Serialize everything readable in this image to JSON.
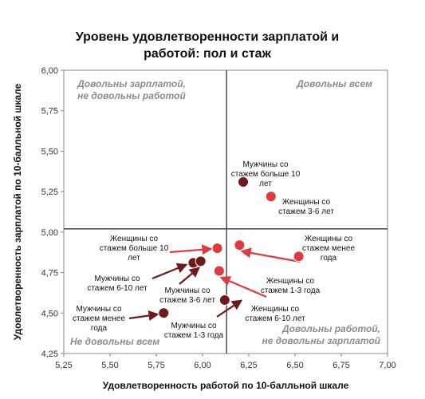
{
  "chart_data": {
    "type": "scatter",
    "title_lines": [
      "Уровень удовлетворенности зарплатой и",
      "работой: пол и стаж"
    ],
    "xlabel": "Удовлетворенность работой по 10-балльной шкале",
    "ylabel": "Удовлетворенность зарплатой по 10-балльной шкале",
    "xlim": [
      5.25,
      7.0
    ],
    "ylim": [
      4.25,
      6.0
    ],
    "x_ticks": [
      "5,25",
      "5,50",
      "5,75",
      "6,00",
      "6,25",
      "6,50",
      "6,75",
      "7,00"
    ],
    "y_ticks": [
      "4,25",
      "4,50",
      "4,75",
      "5,00",
      "5,25",
      "5,50",
      "5,75",
      "6,00"
    ],
    "x_tick_values": [
      5.25,
      5.5,
      5.75,
      6.0,
      6.25,
      6.5,
      6.75,
      7.0
    ],
    "y_tick_values": [
      4.25,
      4.5,
      4.75,
      5.0,
      5.25,
      5.5,
      5.75,
      6.0
    ],
    "divider_x": 6.13,
    "divider_y": 5.02,
    "grid": false,
    "colors": {
      "women": "#e03a3e",
      "men": "#6e1a1a",
      "divider": "#333333"
    },
    "quadrant_labels": {
      "top_left": [
        "Довольны зарплатой,",
        "не довольны работой"
      ],
      "top_right": [
        "Довольны всем"
      ],
      "bottom_left": [
        "Не довольны всем"
      ],
      "bottom_right": [
        "Довольны работой,",
        "не довольны зарплатой"
      ]
    },
    "series": [
      {
        "group": "women",
        "points": [
          {
            "label": "Женщины со стажем больше 10 лет",
            "x": 6.08,
            "y": 4.9
          },
          {
            "label": "Женщины со стажем 1-3 года",
            "x": 6.2,
            "y": 4.92
          },
          {
            "label": "Женщины со стажем менее года",
            "x": 6.52,
            "y": 4.85
          },
          {
            "label": "Женщины со стажем 3-6 лет",
            "x": 6.37,
            "y": 5.22
          },
          {
            "label": "Женщины со стажем 6-10 лет",
            "x": 6.09,
            "y": 4.76
          }
        ]
      },
      {
        "group": "men",
        "points": [
          {
            "label": "Мужчины со стажем больше 10 лет",
            "x": 6.22,
            "y": 5.31
          },
          {
            "label": "Мужчины со стажем 6-10 лет",
            "x": 5.95,
            "y": 4.81
          },
          {
            "label": "Мужчины со стажем 3-6 лет",
            "x": 5.99,
            "y": 4.82
          },
          {
            "label": "Мужчины со стажем менее года",
            "x": 5.79,
            "y": 4.5
          },
          {
            "label": "Мужчины со стажем 1-3 года",
            "x": 6.12,
            "y": 4.58
          }
        ]
      }
    ],
    "annotations": [
      {
        "lines": [
          "Мужчины со",
          "стажем больше 10",
          "лет"
        ]
      },
      {
        "lines": [
          "Женщины со",
          "стажем 3-6 лет"
        ]
      },
      {
        "lines": [
          "Женщины со",
          "стажем больше 10",
          "лет"
        ]
      },
      {
        "lines": [
          "Женщины со",
          "стажем менее",
          "года"
        ]
      },
      {
        "lines": [
          "Мужчины со",
          "стажем 6-10 лет"
        ]
      },
      {
        "lines": [
          "Мужчины со",
          "стажем 3-6 лет"
        ]
      },
      {
        "lines": [
          "Женщины со",
          "стажем 1-3 года"
        ]
      },
      {
        "lines": [
          "Мужчины со",
          "стажем менее",
          "года"
        ]
      },
      {
        "lines": [
          "Женщины со",
          "стажем 6-10 лет"
        ]
      },
      {
        "lines": [
          "Мужчины со",
          "стажем 1-3 года"
        ]
      }
    ]
  }
}
